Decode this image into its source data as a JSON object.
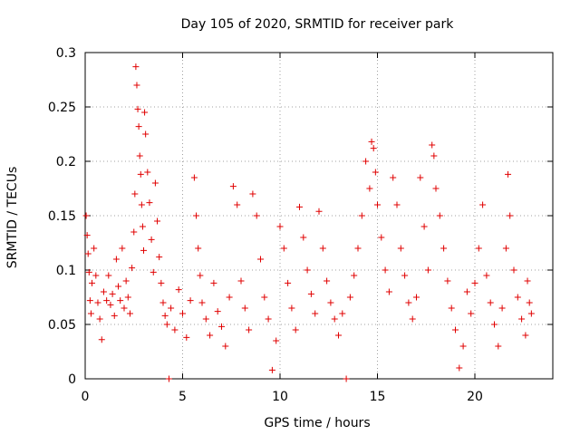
{
  "chart_data": {
    "type": "scatter",
    "title": "Day 105 of 2020, SRMTID for receiver park",
    "xlabel": "GPS time / hours",
    "ylabel": "SRMTID / TECUs",
    "xlim": [
      0,
      24
    ],
    "ylim": [
      0,
      0.3
    ],
    "xticks": [
      0,
      5,
      10,
      15,
      20
    ],
    "xtick_labels": [
      "0",
      "5",
      "10",
      "15",
      "20"
    ],
    "yticks": [
      0,
      0.05,
      0.1,
      0.15,
      0.2,
      0.25,
      0.3
    ],
    "ytick_labels": [
      "0",
      "0.05",
      "0.1",
      "0.15",
      "0.2",
      "0.25",
      "0.3"
    ],
    "grid": true,
    "marker": "plus",
    "series": [
      {
        "name": "SRMTID",
        "color": "#e00000",
        "points": [
          [
            0.05,
            0.15
          ],
          [
            0.1,
            0.132
          ],
          [
            0.15,
            0.115
          ],
          [
            0.2,
            0.098
          ],
          [
            0.25,
            0.072
          ],
          [
            0.3,
            0.06
          ],
          [
            0.35,
            0.088
          ],
          [
            0.45,
            0.12
          ],
          [
            0.55,
            0.095
          ],
          [
            0.65,
            0.07
          ],
          [
            0.75,
            0.055
          ],
          [
            0.85,
            0.036
          ],
          [
            0.95,
            0.08
          ],
          [
            1.1,
            0.072
          ],
          [
            1.2,
            0.095
          ],
          [
            1.3,
            0.068
          ],
          [
            1.4,
            0.078
          ],
          [
            1.5,
            0.058
          ],
          [
            1.6,
            0.11
          ],
          [
            1.7,
            0.085
          ],
          [
            1.8,
            0.072
          ],
          [
            1.9,
            0.12
          ],
          [
            2.0,
            0.065
          ],
          [
            2.1,
            0.09
          ],
          [
            2.2,
            0.075
          ],
          [
            2.3,
            0.06
          ],
          [
            2.4,
            0.102
          ],
          [
            2.5,
            0.135
          ],
          [
            2.55,
            0.17
          ],
          [
            2.6,
            0.287
          ],
          [
            2.65,
            0.27
          ],
          [
            2.7,
            0.248
          ],
          [
            2.75,
            0.232
          ],
          [
            2.8,
            0.205
          ],
          [
            2.85,
            0.188
          ],
          [
            2.9,
            0.16
          ],
          [
            2.95,
            0.14
          ],
          [
            3.0,
            0.118
          ],
          [
            3.05,
            0.245
          ],
          [
            3.1,
            0.225
          ],
          [
            3.2,
            0.19
          ],
          [
            3.3,
            0.162
          ],
          [
            3.4,
            0.128
          ],
          [
            3.5,
            0.098
          ],
          [
            3.6,
            0.18
          ],
          [
            3.7,
            0.145
          ],
          [
            3.8,
            0.112
          ],
          [
            3.9,
            0.088
          ],
          [
            4.0,
            0.07
          ],
          [
            4.1,
            0.058
          ],
          [
            4.2,
            0.05
          ],
          [
            4.3,
            0.0
          ],
          [
            4.4,
            0.065
          ],
          [
            4.6,
            0.045
          ],
          [
            4.8,
            0.082
          ],
          [
            5.0,
            0.06
          ],
          [
            5.2,
            0.038
          ],
          [
            5.4,
            0.072
          ],
          [
            5.6,
            0.185
          ],
          [
            5.7,
            0.15
          ],
          [
            5.8,
            0.12
          ],
          [
            5.9,
            0.095
          ],
          [
            6.0,
            0.07
          ],
          [
            6.2,
            0.055
          ],
          [
            6.4,
            0.04
          ],
          [
            6.6,
            0.088
          ],
          [
            6.8,
            0.062
          ],
          [
            7.0,
            0.048
          ],
          [
            7.2,
            0.03
          ],
          [
            7.4,
            0.075
          ],
          [
            7.6,
            0.177
          ],
          [
            7.8,
            0.16
          ],
          [
            8.0,
            0.09
          ],
          [
            8.2,
            0.065
          ],
          [
            8.4,
            0.045
          ],
          [
            8.6,
            0.17
          ],
          [
            8.8,
            0.15
          ],
          [
            9.0,
            0.11
          ],
          [
            9.2,
            0.075
          ],
          [
            9.4,
            0.055
          ],
          [
            9.6,
            0.008
          ],
          [
            9.8,
            0.035
          ],
          [
            10.0,
            0.14
          ],
          [
            10.2,
            0.12
          ],
          [
            10.4,
            0.088
          ],
          [
            10.6,
            0.065
          ],
          [
            10.8,
            0.045
          ],
          [
            11.0,
            0.158
          ],
          [
            11.2,
            0.13
          ],
          [
            11.4,
            0.1
          ],
          [
            11.6,
            0.078
          ],
          [
            11.8,
            0.06
          ],
          [
            12.0,
            0.154
          ],
          [
            12.2,
            0.12
          ],
          [
            12.4,
            0.09
          ],
          [
            12.6,
            0.07
          ],
          [
            12.8,
            0.055
          ],
          [
            13.0,
            0.04
          ],
          [
            13.2,
            0.06
          ],
          [
            13.4,
            0.0
          ],
          [
            13.6,
            0.075
          ],
          [
            13.8,
            0.095
          ],
          [
            14.0,
            0.12
          ],
          [
            14.2,
            0.15
          ],
          [
            14.4,
            0.2
          ],
          [
            14.6,
            0.175
          ],
          [
            14.7,
            0.218
          ],
          [
            14.8,
            0.212
          ],
          [
            14.9,
            0.19
          ],
          [
            15.0,
            0.16
          ],
          [
            15.2,
            0.13
          ],
          [
            15.4,
            0.1
          ],
          [
            15.6,
            0.08
          ],
          [
            15.8,
            0.185
          ],
          [
            16.0,
            0.16
          ],
          [
            16.2,
            0.12
          ],
          [
            16.4,
            0.095
          ],
          [
            16.6,
            0.07
          ],
          [
            16.8,
            0.055
          ],
          [
            17.0,
            0.075
          ],
          [
            17.2,
            0.185
          ],
          [
            17.4,
            0.14
          ],
          [
            17.6,
            0.1
          ],
          [
            17.8,
            0.215
          ],
          [
            17.9,
            0.205
          ],
          [
            18.0,
            0.175
          ],
          [
            18.2,
            0.15
          ],
          [
            18.4,
            0.12
          ],
          [
            18.6,
            0.09
          ],
          [
            18.8,
            0.065
          ],
          [
            19.0,
            0.045
          ],
          [
            19.2,
            0.01
          ],
          [
            19.4,
            0.03
          ],
          [
            19.6,
            0.08
          ],
          [
            19.8,
            0.06
          ],
          [
            20.0,
            0.088
          ],
          [
            20.2,
            0.12
          ],
          [
            20.4,
            0.16
          ],
          [
            20.6,
            0.095
          ],
          [
            20.8,
            0.07
          ],
          [
            21.0,
            0.05
          ],
          [
            21.2,
            0.03
          ],
          [
            21.4,
            0.065
          ],
          [
            21.6,
            0.12
          ],
          [
            21.7,
            0.188
          ],
          [
            21.8,
            0.15
          ],
          [
            22.0,
            0.1
          ],
          [
            22.2,
            0.075
          ],
          [
            22.4,
            0.055
          ],
          [
            22.6,
            0.04
          ],
          [
            22.7,
            0.09
          ],
          [
            22.8,
            0.07
          ],
          [
            22.9,
            0.06
          ]
        ]
      }
    ]
  }
}
